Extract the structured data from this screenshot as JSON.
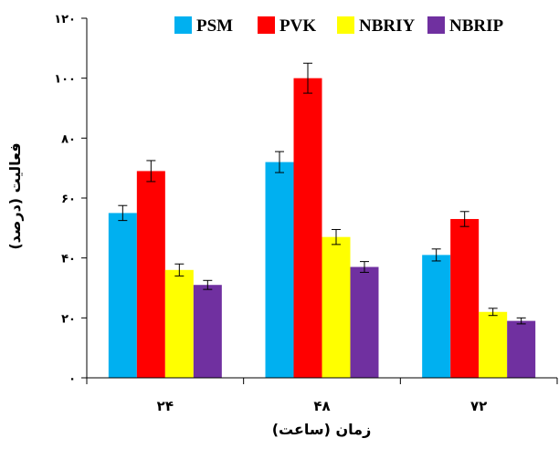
{
  "chart_data": {
    "type": "bar",
    "categories": [
      "۲۴",
      "۴۸",
      "۷۲"
    ],
    "series": [
      {
        "name": "PSM",
        "color": "#00B0F0",
        "values": [
          55,
          72,
          41
        ],
        "errors": [
          2.5,
          3.5,
          2
        ]
      },
      {
        "name": "PVK",
        "color": "#FF0000",
        "values": [
          69,
          100,
          53
        ],
        "errors": [
          3.5,
          5,
          2.5
        ]
      },
      {
        "name": "NBRIY",
        "color": "#FFFF00",
        "values": [
          36,
          47,
          22
        ],
        "errors": [
          2,
          2.5,
          1.2
        ]
      },
      {
        "name": "NBRIP",
        "color": "#7030A0",
        "values": [
          31,
          37,
          19
        ],
        "errors": [
          1.5,
          1.8,
          1
        ]
      }
    ],
    "xlabel": "زمان (ساعت)",
    "ylabel": "فعالیت (درصد)",
    "ylim": [
      0,
      120
    ],
    "yticks": [
      0,
      20,
      40,
      60,
      80,
      100,
      120
    ],
    "ytick_labels": [
      "۰",
      "۲۰",
      "۴۰",
      "۶۰",
      "۸۰",
      "۱۰۰",
      "۱۲۰"
    ],
    "legend_position": "top",
    "grid": false
  }
}
